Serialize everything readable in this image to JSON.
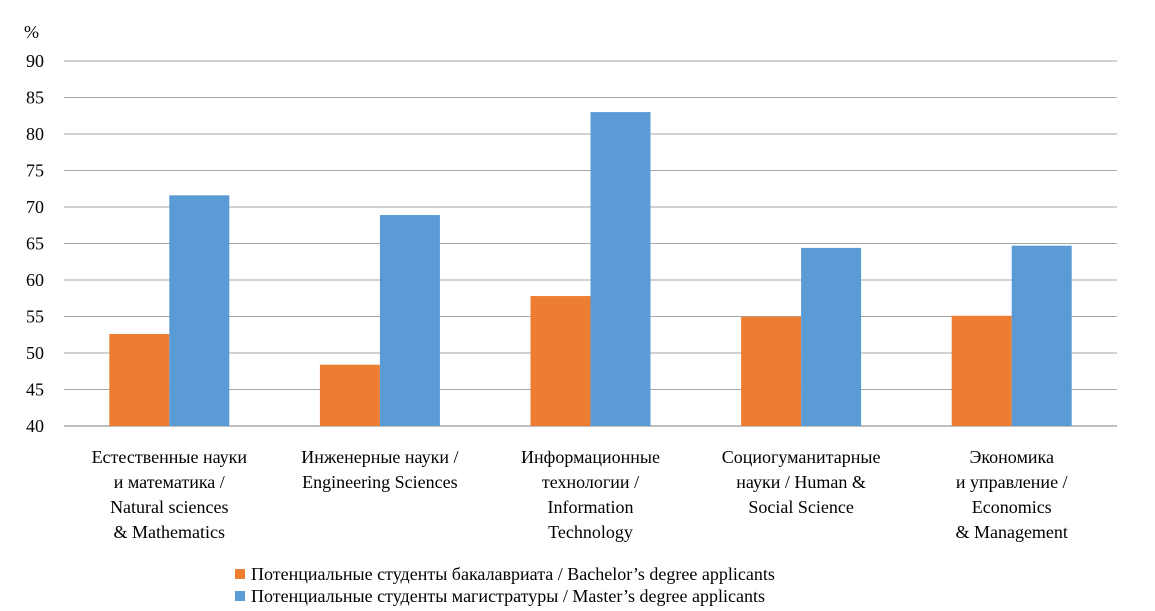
{
  "chart_data": {
    "type": "bar",
    "ylabel": "%",
    "ylim": [
      40,
      90
    ],
    "yticks": [
      40,
      45,
      50,
      55,
      60,
      65,
      70,
      75,
      80,
      85,
      90
    ],
    "grid": true,
    "legend_position": "bottom",
    "categories": [
      [
        "Естественные науки",
        "и математика /",
        "Natural sciences",
        "& Mathematics"
      ],
      [
        "Инженерные науки /",
        "Engineering Sciences"
      ],
      [
        "Информационные",
        "технологии /",
        "Information",
        "Technology"
      ],
      [
        "Социогуманитарные",
        "науки / Human &",
        "Social Science"
      ],
      [
        "Экономика",
        "и управление /",
        "Economics",
        "& Management"
      ]
    ],
    "series": [
      {
        "name": "Потенциальные студенты бакалавриата / Bachelor’s degree applicants",
        "color": "#ED7D31",
        "values": [
          52.6,
          48.4,
          57.8,
          55.0,
          55.1
        ]
      },
      {
        "name": "Потенциальные студенты магистратуры / Master’s degree applicants",
        "color": "#5B9BD5",
        "values": [
          71.6,
          68.9,
          83.0,
          64.4,
          64.7
        ]
      }
    ]
  }
}
